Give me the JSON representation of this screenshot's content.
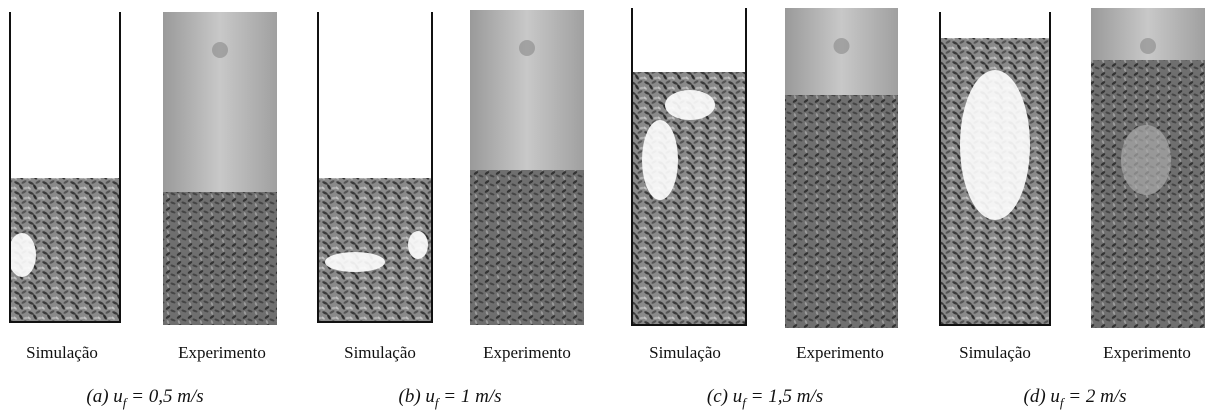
{
  "panels": [
    {
      "simulation_label": "Simulação",
      "experiment_label": "Experimento",
      "caption": {
        "prefix": "(a) u",
        "subscript": "f",
        "rest": " = 0,5 m/s"
      }
    },
    {
      "simulation_label": "Simulação",
      "experiment_label": "Experimento",
      "caption": {
        "prefix": "(b) u",
        "subscript": "f",
        "rest": " = 1 m/s"
      }
    },
    {
      "simulation_label": "Simulação",
      "experiment_label": "Experimento",
      "caption": {
        "prefix": "(c) u",
        "subscript": "f",
        "rest": " = 1,5 m/s"
      }
    },
    {
      "simulation_label": "Simulação",
      "experiment_label": "Experimento",
      "caption": {
        "prefix": "(d) u",
        "subscript": "f",
        "rest": " = 2 m/s"
      }
    }
  ]
}
